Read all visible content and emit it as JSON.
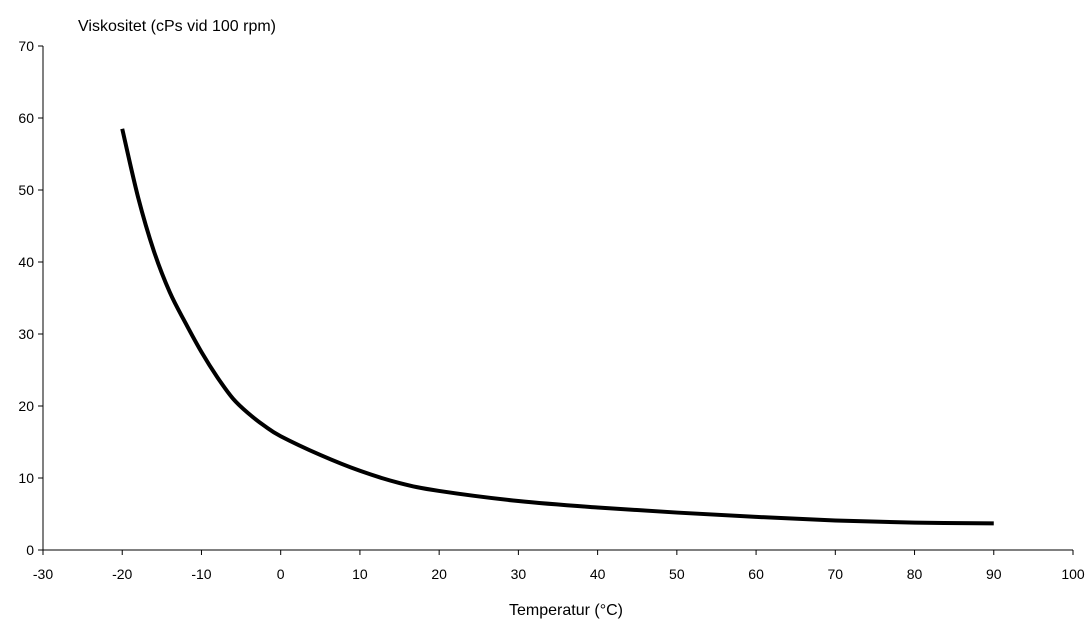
{
  "chart_data": {
    "type": "line",
    "title": "",
    "ylabel": "Viskositet (cPs vid 100 rpm)",
    "xlabel": "Temperatur (°C)",
    "xlim": [
      -30,
      100
    ],
    "ylim": [
      0,
      70
    ],
    "xticks": [
      -30,
      -20,
      -10,
      0,
      10,
      20,
      30,
      40,
      50,
      60,
      70,
      80,
      90,
      100
    ],
    "yticks": [
      0,
      10,
      20,
      30,
      40,
      50,
      60,
      70
    ],
    "xtick_labels": [
      "-30",
      "-20",
      "-10",
      "0",
      "10",
      "20",
      "30",
      "40",
      "50",
      "60",
      "70",
      "80",
      "90",
      "100"
    ],
    "ytick_labels": [
      "0",
      "10",
      "20",
      "30",
      "40",
      "50",
      "60",
      "70"
    ],
    "grid": false,
    "series": [
      {
        "color": "#000000",
        "x": [
          -20,
          -18,
          -16,
          -14,
          -12,
          -10,
          -8,
          -6,
          -4,
          -2,
          0,
          5,
          10,
          15,
          20,
          30,
          40,
          50,
          60,
          70,
          80,
          90
        ],
        "y": [
          58.5,
          49,
          41.5,
          35.8,
          31.5,
          27.5,
          24,
          21,
          18.9,
          17.2,
          15.8,
          13.2,
          11,
          9.3,
          8.2,
          6.8,
          5.9,
          5.2,
          4.6,
          4.1,
          3.8,
          3.7
        ]
      }
    ]
  }
}
